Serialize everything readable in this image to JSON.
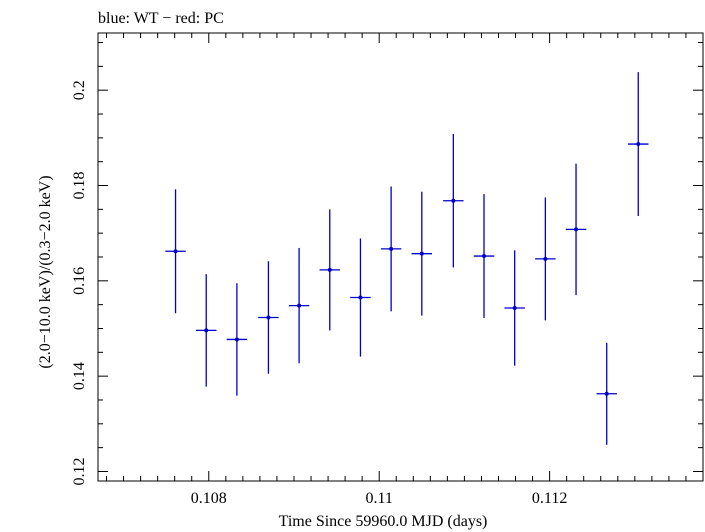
{
  "chart_data": {
    "type": "scatter",
    "title": "blue: WT − red: PC",
    "xlabel": "Time Since 59960.0 MJD (days)",
    "ylabel": "(2.0−10.0 keV)/(0.3−2.0 keV)",
    "xlim": [
      0.1067,
      0.1138
    ],
    "ylim": [
      0.118,
      0.212
    ],
    "x_ticks": [
      0.108,
      0.11,
      0.112
    ],
    "x_tick_labels": [
      "0.108",
      "0.11",
      "0.112"
    ],
    "y_ticks": [
      0.12,
      0.14,
      0.16,
      0.18,
      0.2
    ],
    "y_tick_labels": [
      "0.12",
      "0.14",
      "0.16",
      "0.18",
      "0.2"
    ],
    "grid": false,
    "series": [
      {
        "color": "#0000cc",
        "points": [
          {
            "x": 0.10761,
            "xerr": 0.00012,
            "y": 0.1662,
            "yerr": 0.013
          },
          {
            "x": 0.10797,
            "xerr": 0.00012,
            "y": 0.1496,
            "yerr": 0.0118
          },
          {
            "x": 0.10833,
            "xerr": 0.00012,
            "y": 0.1477,
            "yerr": 0.0118
          },
          {
            "x": 0.1087,
            "xerr": 0.00012,
            "y": 0.1523,
            "yerr": 0.0118
          },
          {
            "x": 0.10906,
            "xerr": 0.00012,
            "y": 0.1548,
            "yerr": 0.0121
          },
          {
            "x": 0.10942,
            "xerr": 0.00012,
            "y": 0.1623,
            "yerr": 0.0127
          },
          {
            "x": 0.10978,
            "xerr": 0.00012,
            "y": 0.1565,
            "yerr": 0.0124
          },
          {
            "x": 0.11014,
            "xerr": 0.00012,
            "y": 0.1667,
            "yerr": 0.0131
          },
          {
            "x": 0.1105,
            "xerr": 0.00012,
            "y": 0.1657,
            "yerr": 0.013
          },
          {
            "x": 0.11087,
            "xerr": 0.00012,
            "y": 0.1768,
            "yerr": 0.014
          },
          {
            "x": 0.11123,
            "xerr": 0.00012,
            "y": 0.1652,
            "yerr": 0.013
          },
          {
            "x": 0.11159,
            "xerr": 0.00012,
            "y": 0.1543,
            "yerr": 0.0121
          },
          {
            "x": 0.11195,
            "xerr": 0.00012,
            "y": 0.1646,
            "yerr": 0.0129
          },
          {
            "x": 0.11231,
            "xerr": 0.00012,
            "y": 0.1708,
            "yerr": 0.0138
          },
          {
            "x": 0.11267,
            "xerr": 0.00012,
            "y": 0.1363,
            "yerr": 0.0107
          },
          {
            "x": 0.11304,
            "xerr": 0.00012,
            "y": 0.1887,
            "yerr": 0.0151
          }
        ]
      }
    ]
  }
}
